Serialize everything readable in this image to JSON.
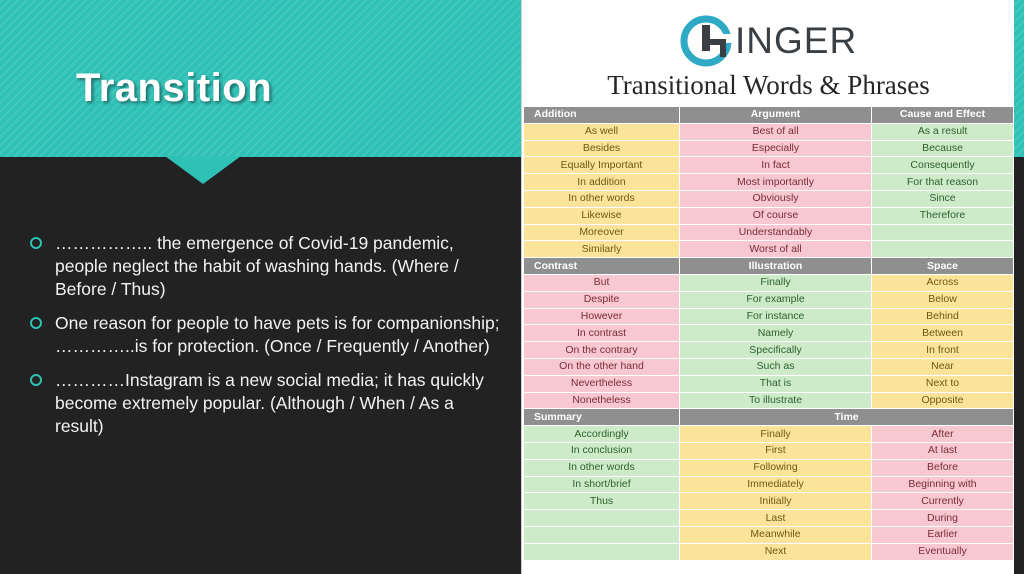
{
  "slide": {
    "title": "Transition",
    "bullets": [
      "…………….. the emergence of Covid-19 pandemic, people neglect the habit of washing hands. (Where / Before / Thus)",
      "One reason for people to have pets is for companionship; …………..is for protection. (Once / Frequently / Another)",
      "…………Instagram is a new social media; it has quickly become extremely popular. (Although / When / As a result)"
    ]
  },
  "infographic": {
    "logo_text": "INGER",
    "title": "Transitional Words & Phrases",
    "headers_1": [
      "Addition",
      "Argument",
      "Cause and Effect"
    ],
    "rows_1": [
      [
        "As well",
        "Best of all",
        "As a result"
      ],
      [
        "Besides",
        "Especially",
        "Because"
      ],
      [
        "Equally Important",
        "In fact",
        "Consequently"
      ],
      [
        "In addition",
        "Most importantly",
        "For that reason"
      ],
      [
        "In other words",
        "Obviously",
        "Since"
      ],
      [
        "Likewise",
        "Of course",
        "Therefore"
      ],
      [
        "Moreover",
        "Understandably",
        ""
      ],
      [
        "Similarly",
        "Worst of all",
        ""
      ]
    ],
    "headers_2": [
      "Contrast",
      "Illustration",
      "Space"
    ],
    "rows_2": [
      [
        "But",
        "Finally",
        "Across"
      ],
      [
        "Despite",
        "For example",
        "Below"
      ],
      [
        "However",
        "For instance",
        "Behind"
      ],
      [
        "In contrast",
        "Namely",
        "Between"
      ],
      [
        "On the contrary",
        "Specifically",
        "In front"
      ],
      [
        "On the other hand",
        "Such as",
        "Near"
      ],
      [
        "Nevertheless",
        "That is",
        "Next to"
      ],
      [
        "Nonetheless",
        "To illustrate",
        "Opposite"
      ]
    ],
    "headers_3": [
      "Summary",
      "Time"
    ],
    "rows_3": [
      [
        "Accordingly",
        "Finally",
        "After"
      ],
      [
        "In conclusion",
        "First",
        "At last"
      ],
      [
        "In other words",
        "Following",
        "Before"
      ],
      [
        "In short/brief",
        "Immediately",
        "Beginning with"
      ],
      [
        "Thus",
        "Initially",
        "Currently"
      ],
      [
        "",
        "Last",
        "During"
      ],
      [
        "",
        "Meanwhile",
        "Earlier"
      ],
      [
        "",
        "Next",
        "Eventually"
      ]
    ],
    "colors": {
      "teal": "#2fc1b6",
      "yellow": "#fbe49a",
      "pink": "#f7c8cf",
      "green": "#cdebc9",
      "header_gray": "#8f8f8f",
      "background": "#222222"
    }
  }
}
